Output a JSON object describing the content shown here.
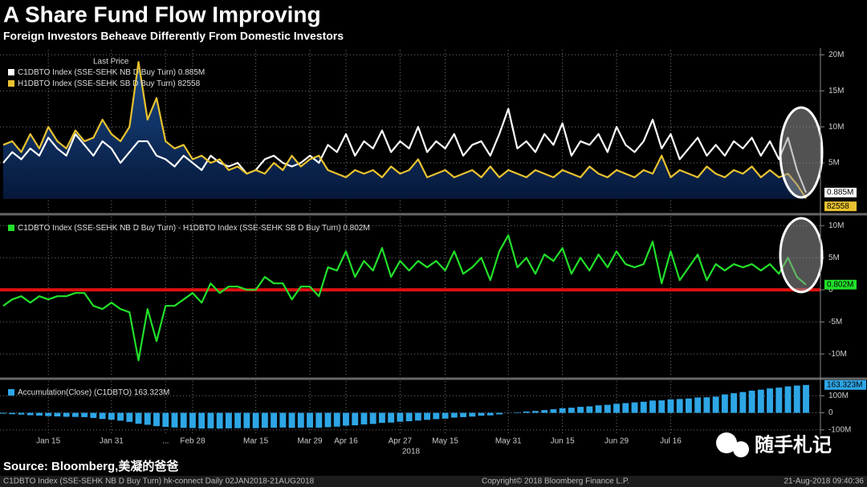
{
  "title": "A Share Fund Flow Improving",
  "subtitle": "Foreign Investors Beheave Differently From Domestic Investors",
  "source": "Source: Bloomberg,美凝的爸爸",
  "footer": {
    "left": "C1DBTO Index (SSE-SEHK NB D Buy Turn) hk-connect  Daily 02JAN2018-21AUG2018",
    "center": "Copyright© 2018 Bloomberg Finance L.P.",
    "right": "21-Aug-2018 09:40:36"
  },
  "watermark": "随手札记",
  "chart_data": [
    {
      "type": "line",
      "legend_header": "Last Price",
      "ylim": [
        -1.9,
        20.7
      ],
      "yticks": [
        {
          "value": 5,
          "label": "5M"
        },
        {
          "value": 10,
          "label": "10M"
        },
        {
          "value": 15,
          "label": "15M"
        },
        {
          "value": 20,
          "label": "20M"
        }
      ],
      "grid": true,
      "series": [
        {
          "name": "C1DBTO Index (SSE-SEHK NB D Buy Turn)",
          "color": "#ffffff",
          "last_label": "0.885M",
          "values": [
            5,
            6.5,
            5.5,
            7,
            6,
            8.5,
            7,
            6,
            9,
            7.5,
            6,
            8,
            7,
            5,
            6.5,
            8,
            8,
            6,
            5.5,
            4.5,
            6,
            5,
            4,
            6,
            5,
            4.5,
            5,
            3.5,
            4,
            5.5,
            6,
            5,
            4.5,
            5,
            6,
            5,
            7.5,
            6.5,
            9,
            6,
            8,
            7,
            9.5,
            6.5,
            8,
            7,
            10,
            6.5,
            8,
            7,
            9,
            6,
            7.5,
            8,
            6,
            9,
            12.5,
            7,
            8,
            6.5,
            9,
            7.5,
            10.5,
            6,
            8,
            7.5,
            9,
            6.5,
            10,
            7.5,
            6.5,
            8,
            11,
            7,
            9,
            5.5,
            7,
            8.5,
            6,
            7.5,
            6,
            8,
            7,
            8.5,
            6,
            8,
            5.5,
            8.5,
            4,
            0.885
          ]
        },
        {
          "name": "H1DBTO Index (SSE-SEHK SB D Buy Turn)",
          "color": "#e8c230",
          "last_label": "82558",
          "fill": true,
          "values": [
            7.5,
            8,
            6.5,
            9,
            7,
            10,
            8,
            7,
            9.5,
            8,
            8.5,
            11,
            9,
            8,
            10,
            19,
            11,
            14,
            8,
            7,
            7.5,
            5.5,
            6,
            5,
            5.5,
            4,
            4.5,
            3.5,
            4,
            3.5,
            5,
            4,
            6,
            4.5,
            5.5,
            6,
            4,
            3.5,
            3,
            4,
            3.5,
            4,
            3,
            4.5,
            3.5,
            4,
            5.5,
            3,
            3.5,
            4,
            3,
            3.5,
            4,
            3,
            4.5,
            3,
            4,
            3.5,
            3,
            4,
            3.5,
            3,
            4,
            3.5,
            3,
            4.5,
            3.5,
            3,
            4,
            3.5,
            3,
            4,
            3.5,
            6,
            3,
            4,
            3.5,
            3,
            4.5,
            3.5,
            3,
            4,
            3.5,
            4.5,
            3,
            4,
            3,
            3.5,
            2,
            0.082558
          ]
        }
      ]
    },
    {
      "type": "line",
      "ylim": [
        -13.6,
        11.4
      ],
      "zero_line_color": "#e01010",
      "yticks": [
        {
          "value": -10,
          "label": "-10M"
        },
        {
          "value": -5,
          "label": "-5M"
        },
        0,
        {
          "value": 5,
          "label": "5M"
        },
        {
          "value": 10,
          "label": "10M"
        }
      ],
      "grid": true,
      "series": [
        {
          "name": "C1DBTO Index (SSE-SEHK NB D Buy Turn) - H1DBTO Index (SSE-SEHK SB D Buy Turn)",
          "color": "#22e02a",
          "last_label": "0.802M",
          "values": [
            -2.5,
            -1.5,
            -1,
            -2,
            -1,
            -1.5,
            -1,
            -1,
            -0.5,
            -0.5,
            -2.5,
            -3,
            -2,
            -3,
            -3.5,
            -11,
            -3,
            -8,
            -2.5,
            -2.5,
            -1.5,
            -0.5,
            -2,
            1,
            -0.5,
            0.5,
            0.5,
            0,
            0,
            2,
            1,
            1,
            -1.5,
            0.5,
            0.5,
            -1,
            3.5,
            3,
            6,
            2,
            4.5,
            3,
            6.5,
            2,
            4.5,
            3,
            4.5,
            3.5,
            4.5,
            3,
            6,
            2.5,
            3.5,
            5,
            1.5,
            6,
            8.5,
            3.5,
            5,
            2.5,
            5.5,
            4.5,
            6.5,
            2.5,
            5,
            3,
            5.5,
            3.5,
            6,
            4,
            3.5,
            4,
            7.5,
            1,
            6,
            1.5,
            3.5,
            5.5,
            1.5,
            4,
            3,
            4,
            3.5,
            4,
            3,
            4,
            2.5,
            5,
            2,
            0.802
          ]
        }
      ]
    },
    {
      "type": "bar",
      "ylim": [
        -129,
        186
      ],
      "yticks": [
        {
          "value": -100,
          "label": "-100M"
        },
        0,
        {
          "value": 100,
          "label": "100M"
        }
      ],
      "grid": true,
      "categories": [
        null,
        null,
        null,
        null,
        null,
        "Jan 15",
        null,
        null,
        null,
        null,
        null,
        null,
        "Jan 31",
        null,
        null,
        null,
        null,
        null,
        "...",
        null,
        null,
        "Feb 28",
        null,
        null,
        null,
        null,
        null,
        null,
        "Mar 15",
        null,
        null,
        null,
        null,
        null,
        "Mar 29",
        null,
        null,
        null,
        "Apr 16",
        null,
        null,
        null,
        null,
        null,
        "Apr 27",
        null,
        null,
        null,
        null,
        "May 15",
        null,
        null,
        null,
        null,
        null,
        null,
        "May 31",
        null,
        null,
        null,
        null,
        null,
        "Jun 15",
        null,
        null,
        null,
        null,
        null,
        "Jun 29",
        null,
        null,
        null,
        null,
        null,
        "Jul 16",
        null,
        null,
        null,
        null,
        null,
        null,
        null,
        null,
        null,
        null,
        null,
        null,
        null,
        null,
        null
      ],
      "x_year": "2018",
      "series": [
        {
          "name": "Accumulation(Close) (C1DBTO)",
          "color": "#2ea6e6",
          "last_label": "163.323M",
          "values": [
            -5,
            -8,
            -10,
            -14,
            -16,
            -19,
            -21,
            -23,
            -24,
            -25,
            -30,
            -36,
            -40,
            -46,
            -53,
            -64,
            -70,
            -78,
            -82,
            -86,
            -88,
            -89,
            -92,
            -91,
            -92,
            -91,
            -90,
            -90,
            -90,
            -88,
            -87,
            -86,
            -88,
            -87,
            -86,
            -87,
            -84,
            -81,
            -75,
            -73,
            -68,
            -65,
            -59,
            -57,
            -52,
            -49,
            -45,
            -41,
            -37,
            -34,
            -28,
            -25,
            -22,
            -17,
            -15,
            -9,
            -1,
            3,
            8,
            11,
            16,
            21,
            27,
            30,
            35,
            38,
            44,
            47,
            53,
            57,
            61,
            65,
            72,
            73,
            79,
            81,
            84,
            90,
            91,
            95,
            108,
            115,
            122,
            130,
            136,
            143,
            148,
            155,
            160,
            163.323
          ]
        }
      ]
    }
  ]
}
